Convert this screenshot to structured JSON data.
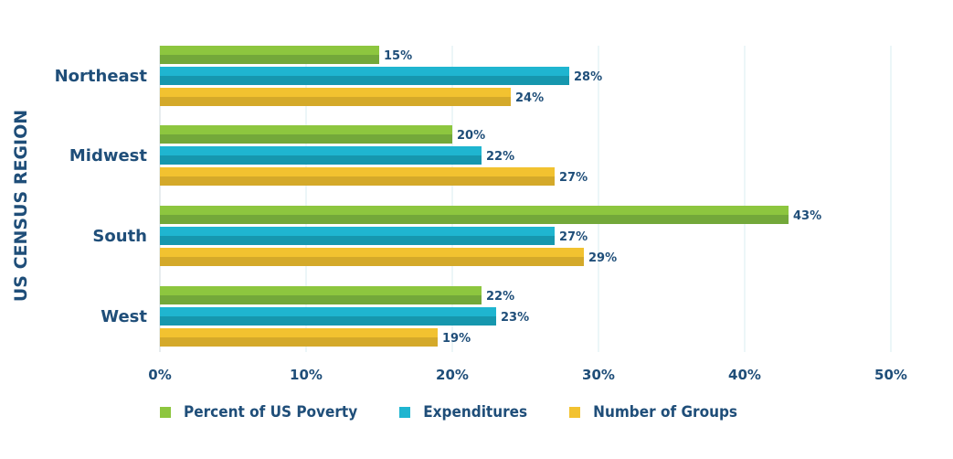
{
  "chart_data": {
    "type": "bar",
    "orientation": "horizontal",
    "ylabel": "US CENSUS REGION",
    "categories": [
      "Northeast",
      "Midwest",
      "South",
      "West"
    ],
    "series": [
      {
        "name": "Percent of US Poverty",
        "color": "#8dc63f",
        "values": [
          15,
          20,
          43,
          22
        ]
      },
      {
        "name": "Expenditures",
        "color": "#1fb5d0",
        "values": [
          28,
          22,
          27,
          23
        ]
      },
      {
        "name": "Number of Groups",
        "color": "#f2c230",
        "values": [
          24,
          27,
          29,
          19
        ]
      }
    ],
    "value_labels": {
      "Percent of US Poverty": [
        "15%",
        "20%",
        "43%",
        "22%"
      ],
      "Expenditures": [
        "28%",
        "22%",
        "27%",
        "23%"
      ],
      "Number of Groups": [
        "24%",
        "27%",
        "29%",
        "19%"
      ]
    },
    "xlim": [
      0,
      50
    ],
    "xticks": [
      0,
      10,
      20,
      30,
      40,
      50
    ],
    "xtick_labels": [
      "0%",
      "10%",
      "20%",
      "30%",
      "40%",
      "50%"
    ],
    "grid": "vertical",
    "legend_position": "bottom"
  },
  "colors": {
    "text": "#1f4e79",
    "grid": "#d8ecf2",
    "green_dark": "#73a83a",
    "blue_dark": "#1697ae",
    "yellow_dark": "#d4a92a"
  }
}
